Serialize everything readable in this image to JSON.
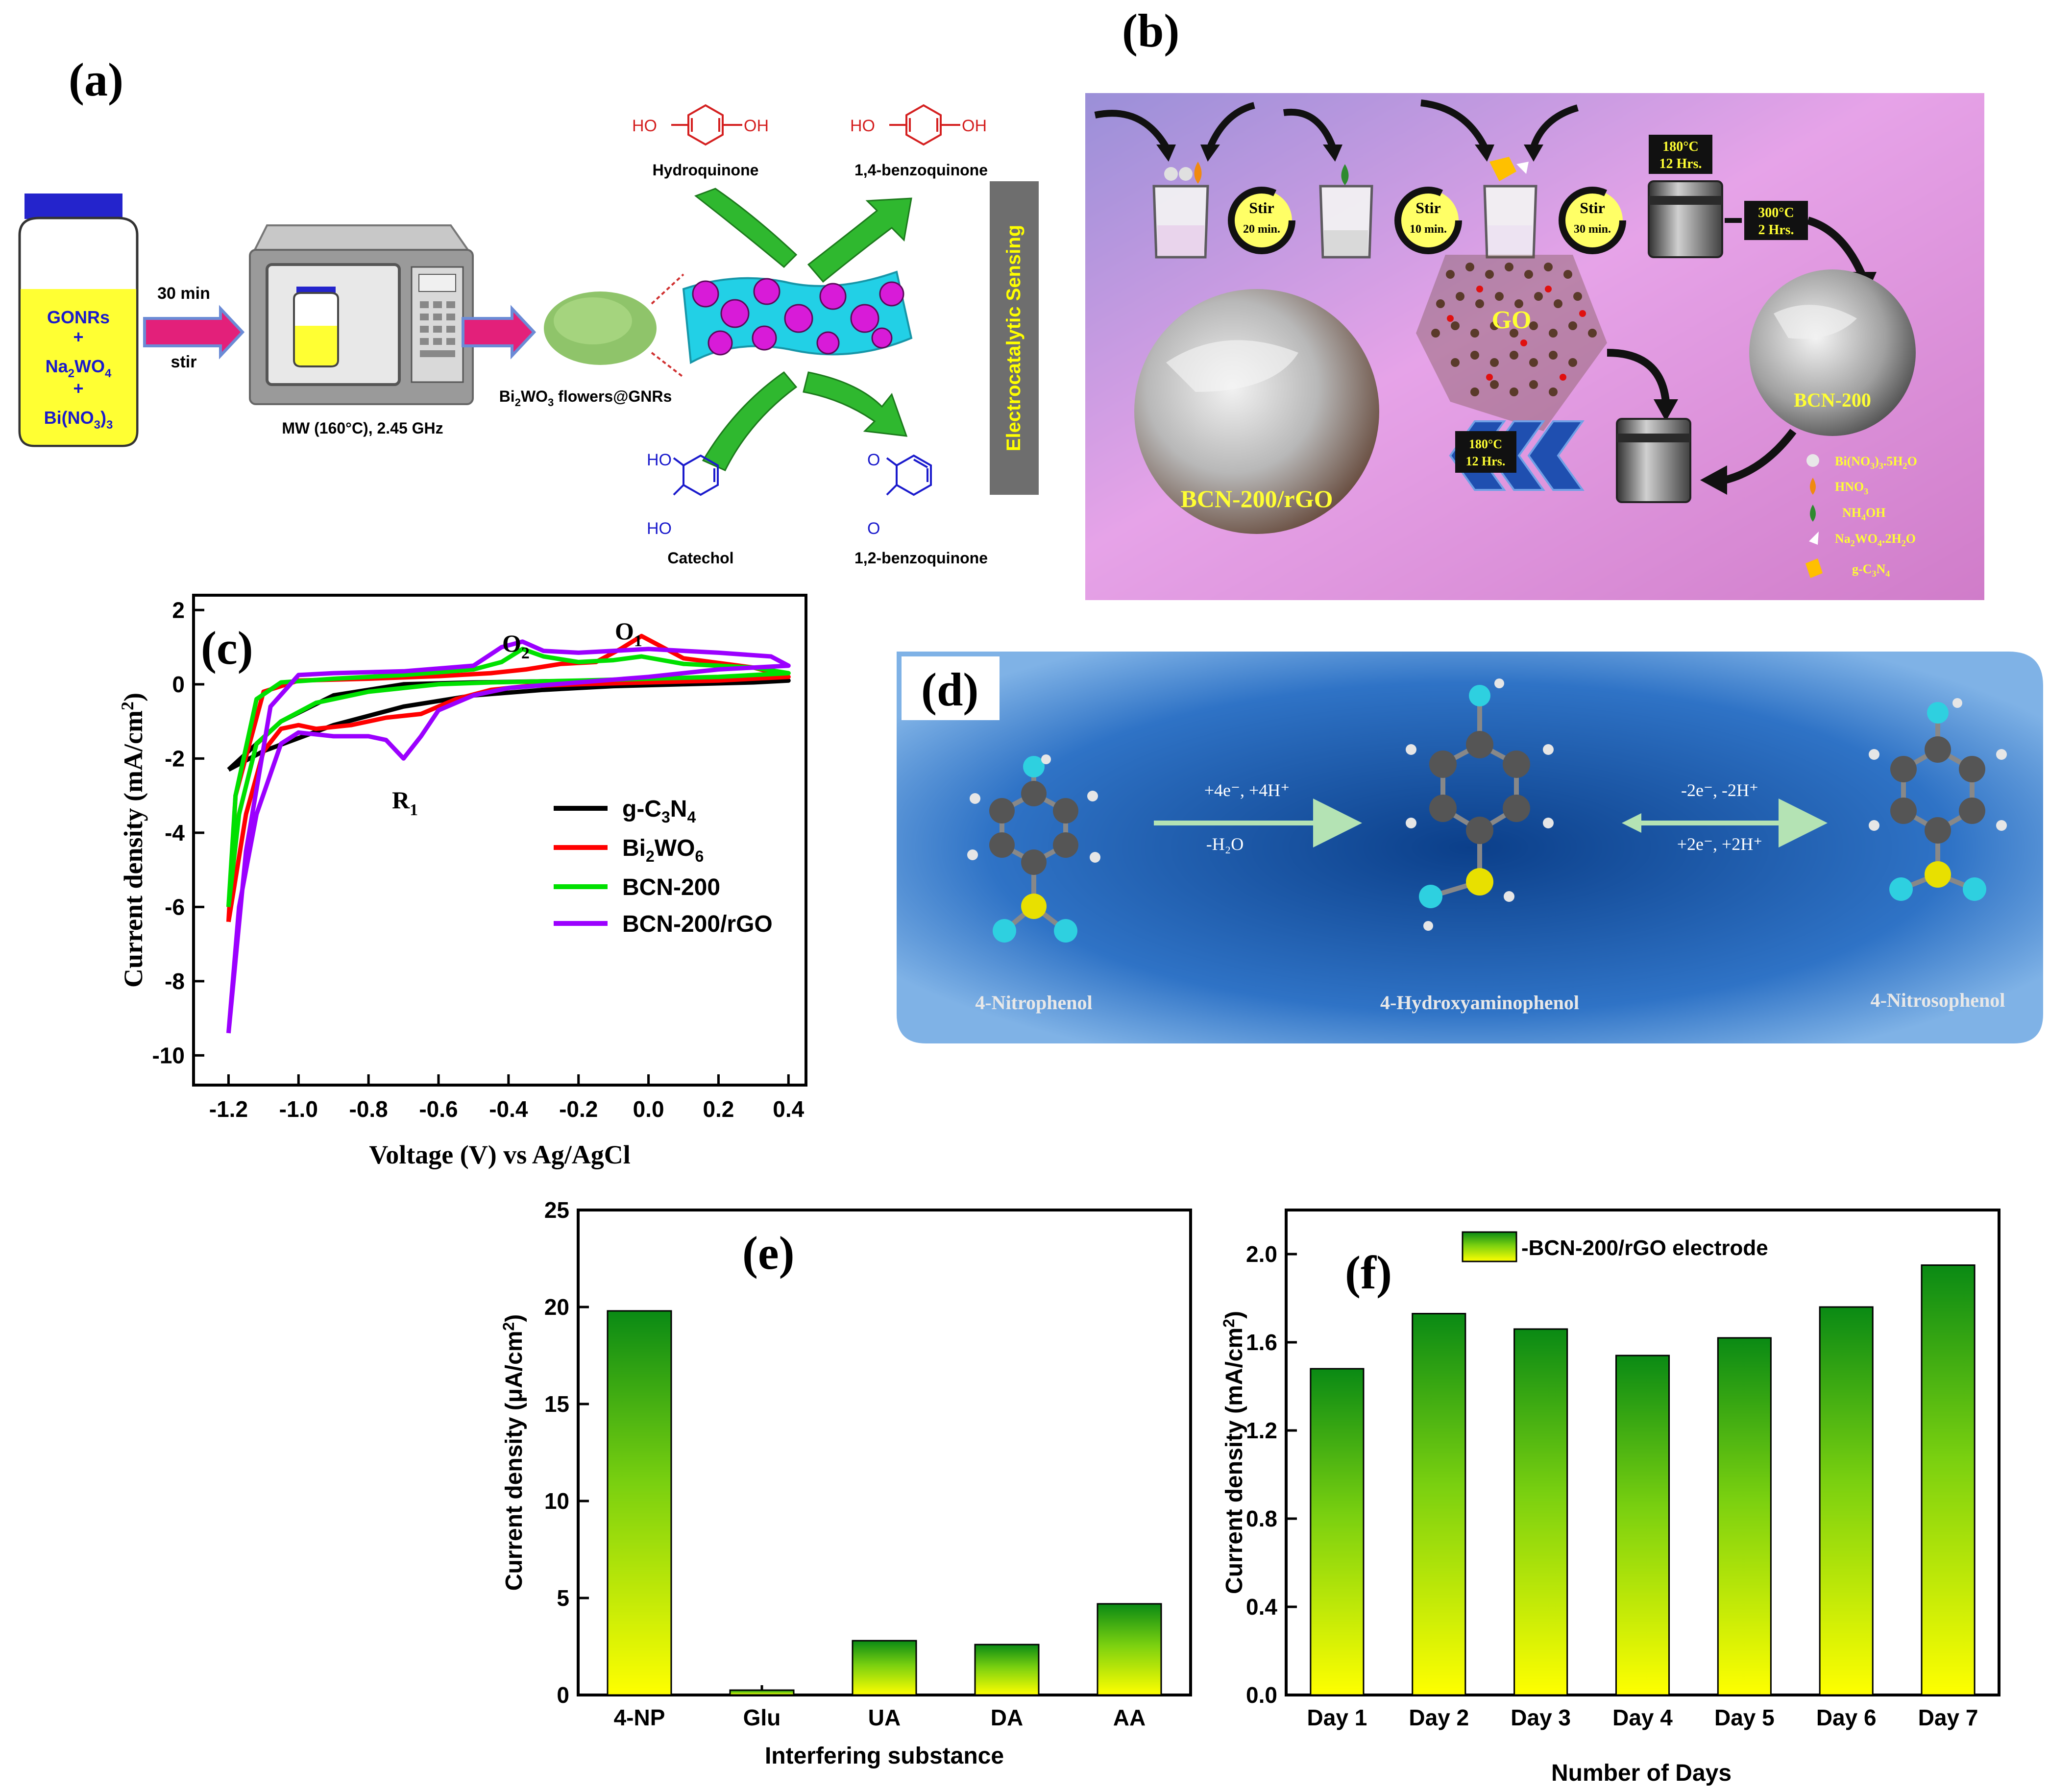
{
  "panel_a": {
    "tag": "(a)",
    "jar": {
      "line1": "GONRs",
      "plus1": "+",
      "line2": "Na",
      "line2_sub": "2",
      "line2_end": "WO",
      "line2_sub2": "4",
      "plus2": "+",
      "line3": "Bi(NO",
      "line3_sub": "3",
      "line3_end": ")",
      "line3_sub2": "3"
    },
    "arrow1_top": "30 min",
    "arrow1_bottom": "stir",
    "microwave_label": "MW (160°C), 2.45 GHz",
    "powder_label_a": "Bi",
    "powder_label_sub": "2",
    "powder_label_b": "WO",
    "powder_label_sub2": "3",
    "powder_label_c": " flowers@GNRs",
    "hydroquinone": "Hydroquinone",
    "benzoquinone14": "1,4-benzoquinone",
    "catechol": "Catechol",
    "benzoquinone12": "1,2-benzoquinone",
    "ho": "HO",
    "oh": "OH",
    "o": "O",
    "side_label": "Electrocatalytic Sensing",
    "colors": {
      "red_chem": "#d42020",
      "blue_chem": "#1a1acc",
      "arrow_green": "#2fb82f"
    }
  },
  "panel_b": {
    "tag": "(b)",
    "stir1": "Stir",
    "stir1_time": "20 min.",
    "stir2": "Stir",
    "stir2_time": "10 min.",
    "stir3": "Stir",
    "stir3_time": "30 min.",
    "auto1": "180°C",
    "auto1_t": "12 Hrs.",
    "calc": "300°C",
    "calc_t": "2 Hrs.",
    "auto2": "180°C",
    "auto2_t": "12 Hrs.",
    "go": "GO",
    "bcn": "BCN-200",
    "bcn_rgo": "BCN-200/rGO",
    "legend": {
      "l1": "Bi(NO",
      "l1s": "3",
      "l1e": ")",
      "l1s2": "3",
      "l1f": ".5H",
      "l1s3": "2",
      "l1g": "O",
      "l2": "HNO",
      "l2s": "3",
      "l3": "NH",
      "l3s": "4",
      "l3e": "OH",
      "l4": "Na",
      "l4s": "2",
      "l4e": "WO",
      "l4s2": "4",
      "l4f": ".2H",
      "l4s3": "2",
      "l4g": "O",
      "l5": "g-C",
      "l5s": "3",
      "l5e": "N",
      "l5s2": "4"
    }
  },
  "panel_c": {
    "tag": "(c)",
    "chart_data": {
      "type": "line",
      "title": "",
      "xlabel": "Voltage (V) vs Ag/AgCl",
      "ylabel": "Current density (mA/cm",
      "ylabel_sup": "2",
      "ylabel_end": ")",
      "xlim": [
        -1.3,
        0.45
      ],
      "ylim": [
        -10.8,
        2.4
      ],
      "xticks": [
        "-1.2",
        "-1.0",
        "-0.8",
        "-0.6",
        "-0.4",
        "-0.2",
        "0.0",
        "0.2",
        "0.4"
      ],
      "yticks": [
        "2",
        "0",
        "-2",
        "-4",
        "-6",
        "-8",
        "-10"
      ],
      "annotations": {
        "O1": "O",
        "O1_sub": "1",
        "O2": "O",
        "O2_sub": "2",
        "R1": "R",
        "R1_sub": "1"
      },
      "series": [
        {
          "name": "g-C3N4",
          "label": "g-C",
          "sub1": "3",
          "label2": "N",
          "sub2": "4",
          "color": "#000000",
          "points": [
            [
              -1.2,
              -2.3
            ],
            [
              -1.1,
              -1.8
            ],
            [
              -0.9,
              -1.1
            ],
            [
              -0.7,
              -0.6
            ],
            [
              -0.5,
              -0.3
            ],
            [
              -0.3,
              -0.15
            ],
            [
              -0.1,
              -0.05
            ],
            [
              0.1,
              0.0
            ],
            [
              0.3,
              0.05
            ],
            [
              0.4,
              0.1
            ],
            [
              0.3,
              0.12
            ],
            [
              0.1,
              0.12
            ],
            [
              -0.1,
              0.1
            ],
            [
              -0.3,
              0.08
            ],
            [
              -0.5,
              0.05
            ],
            [
              -0.7,
              0.0
            ],
            [
              -0.9,
              -0.3
            ],
            [
              -1.05,
              -1.0
            ],
            [
              -1.2,
              -2.3
            ]
          ]
        },
        {
          "name": "Bi2WO6",
          "label": "Bi",
          "sub1": "2",
          "label2": "WO",
          "sub2": "6",
          "color": "#ff0000",
          "points": [
            [
              -1.2,
              -6.4
            ],
            [
              -1.15,
              -3.5
            ],
            [
              -1.1,
              -1.8
            ],
            [
              -1.05,
              -1.2
            ],
            [
              -1.0,
              -1.1
            ],
            [
              -0.95,
              -1.2
            ],
            [
              -0.85,
              -1.1
            ],
            [
              -0.75,
              -0.9
            ],
            [
              -0.65,
              -0.8
            ],
            [
              -0.55,
              -0.4
            ],
            [
              -0.45,
              -0.15
            ],
            [
              -0.35,
              -0.05
            ],
            [
              -0.2,
              0.0
            ],
            [
              0.0,
              0.05
            ],
            [
              0.2,
              0.1
            ],
            [
              0.4,
              0.2
            ],
            [
              0.3,
              0.45
            ],
            [
              0.1,
              0.7
            ],
            [
              0.02,
              1.1
            ],
            [
              -0.02,
              1.3
            ],
            [
              -0.08,
              0.95
            ],
            [
              -0.15,
              0.6
            ],
            [
              -0.25,
              0.55
            ],
            [
              -0.35,
              0.4
            ],
            [
              -0.45,
              0.3
            ],
            [
              -0.6,
              0.22
            ],
            [
              -0.8,
              0.15
            ],
            [
              -1.0,
              0.1
            ],
            [
              -1.1,
              -0.2
            ],
            [
              -1.18,
              -3.0
            ],
            [
              -1.2,
              -6.4
            ]
          ]
        },
        {
          "name": "BCN-200",
          "label": "BCN-200",
          "color": "#00e000",
          "points": [
            [
              -1.2,
              -6.0
            ],
            [
              -1.17,
              -3.5
            ],
            [
              -1.12,
              -1.6
            ],
            [
              -1.05,
              -1.0
            ],
            [
              -0.95,
              -0.5
            ],
            [
              -0.8,
              -0.2
            ],
            [
              -0.6,
              0.0
            ],
            [
              -0.45,
              0.05
            ],
            [
              -0.2,
              0.1
            ],
            [
              0.0,
              0.15
            ],
            [
              0.2,
              0.2
            ],
            [
              0.4,
              0.3
            ],
            [
              0.3,
              0.45
            ],
            [
              0.1,
              0.55
            ],
            [
              -0.02,
              0.75
            ],
            [
              -0.1,
              0.65
            ],
            [
              -0.2,
              0.6
            ],
            [
              -0.3,
              0.75
            ],
            [
              -0.36,
              0.95
            ],
            [
              -0.42,
              0.6
            ],
            [
              -0.5,
              0.4
            ],
            [
              -0.7,
              0.25
            ],
            [
              -0.9,
              0.15
            ],
            [
              -1.05,
              0.05
            ],
            [
              -1.12,
              -0.4
            ],
            [
              -1.18,
              -3.0
            ],
            [
              -1.2,
              -6.0
            ]
          ]
        },
        {
          "name": "BCN-200/rGO",
          "label": "BCN-200/rGO",
          "color": "#9b00ff",
          "points": [
            [
              -1.2,
              -9.4
            ],
            [
              -1.17,
              -6.0
            ],
            [
              -1.12,
              -3.5
            ],
            [
              -1.05,
              -1.6
            ],
            [
              -1.0,
              -1.3
            ],
            [
              -0.9,
              -1.4
            ],
            [
              -0.8,
              -1.4
            ],
            [
              -0.75,
              -1.5
            ],
            [
              -0.7,
              -2.0
            ],
            [
              -0.65,
              -1.4
            ],
            [
              -0.6,
              -0.7
            ],
            [
              -0.5,
              -0.3
            ],
            [
              -0.4,
              -0.1
            ],
            [
              -0.2,
              0.05
            ],
            [
              0.0,
              0.2
            ],
            [
              0.2,
              0.4
            ],
            [
              0.4,
              0.5
            ],
            [
              0.35,
              0.75
            ],
            [
              0.2,
              0.85
            ],
            [
              0.0,
              0.95
            ],
            [
              -0.1,
              0.9
            ],
            [
              -0.2,
              0.85
            ],
            [
              -0.3,
              0.9
            ],
            [
              -0.36,
              1.15
            ],
            [
              -0.42,
              1.0
            ],
            [
              -0.5,
              0.5
            ],
            [
              -0.7,
              0.35
            ],
            [
              -0.9,
              0.3
            ],
            [
              -1.0,
              0.25
            ],
            [
              -1.08,
              -0.6
            ],
            [
              -1.15,
              -4.5
            ],
            [
              -1.2,
              -9.4
            ]
          ]
        }
      ]
    }
  },
  "panel_d": {
    "tag": "(d)",
    "mol1": "4-Nitrophenol",
    "mol2": "4-Hydroxyaminophenol",
    "mol3": "4-Nitrosophenol",
    "step1_top": "+4e⁻, +4H⁺",
    "step1_bot": "-H₂O",
    "step2_top": "-2e⁻, -2H⁺",
    "step2_bot": "+2e⁻, +2H⁺"
  },
  "panel_e": {
    "tag": "(e)",
    "chart_data": {
      "type": "bar",
      "title": "",
      "xlabel": "Interfering substance",
      "ylabel": "Current density (μA/cm",
      "ylabel_sup": "2",
      "ylabel_end": ")",
      "categories": [
        "4-NP",
        "Glu",
        "UA",
        "DA",
        "AA"
      ],
      "values": [
        19.8,
        0.25,
        2.8,
        2.6,
        4.7
      ],
      "ylim": [
        0,
        25
      ],
      "yticks": [
        "0",
        "5",
        "10",
        "15",
        "20",
        "25"
      ]
    }
  },
  "panel_f": {
    "tag": "(f)",
    "chart_data": {
      "type": "bar",
      "title": "",
      "xlabel": "Number of Days",
      "ylabel": "Current density (mA/cm",
      "ylabel_sup": "2",
      "ylabel_end": ")",
      "legend": "-BCN-200/rGO electrode",
      "categories": [
        "Day 1",
        "Day 2",
        "Day 3",
        "Day 4",
        "Day 5",
        "Day 6",
        "Day 7"
      ],
      "values": [
        1.48,
        1.73,
        1.66,
        1.54,
        1.62,
        1.76,
        1.95
      ],
      "ylim": [
        0,
        2.2
      ],
      "yticks": [
        "0.0",
        "0.4",
        "0.8",
        "1.2",
        "1.6",
        "2.0"
      ]
    }
  },
  "bar_gradient": {
    "top": "#0a8a14",
    "mid": "#7ad010",
    "bottom": "#ffff00"
  }
}
